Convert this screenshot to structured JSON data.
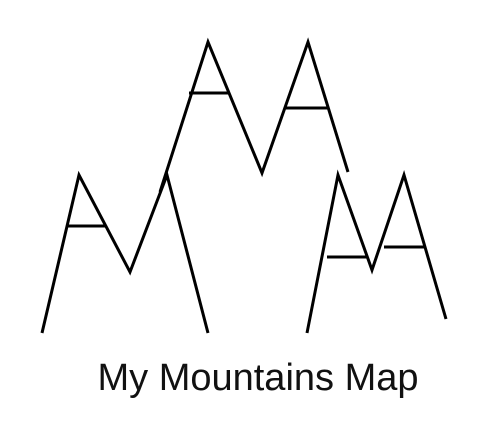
{
  "logo": {
    "text": "My Mountains Map",
    "icon": "mountains-logo-icon",
    "colors": {
      "stroke": "#000000",
      "text": "#111111",
      "background": "#ffffff"
    }
  }
}
